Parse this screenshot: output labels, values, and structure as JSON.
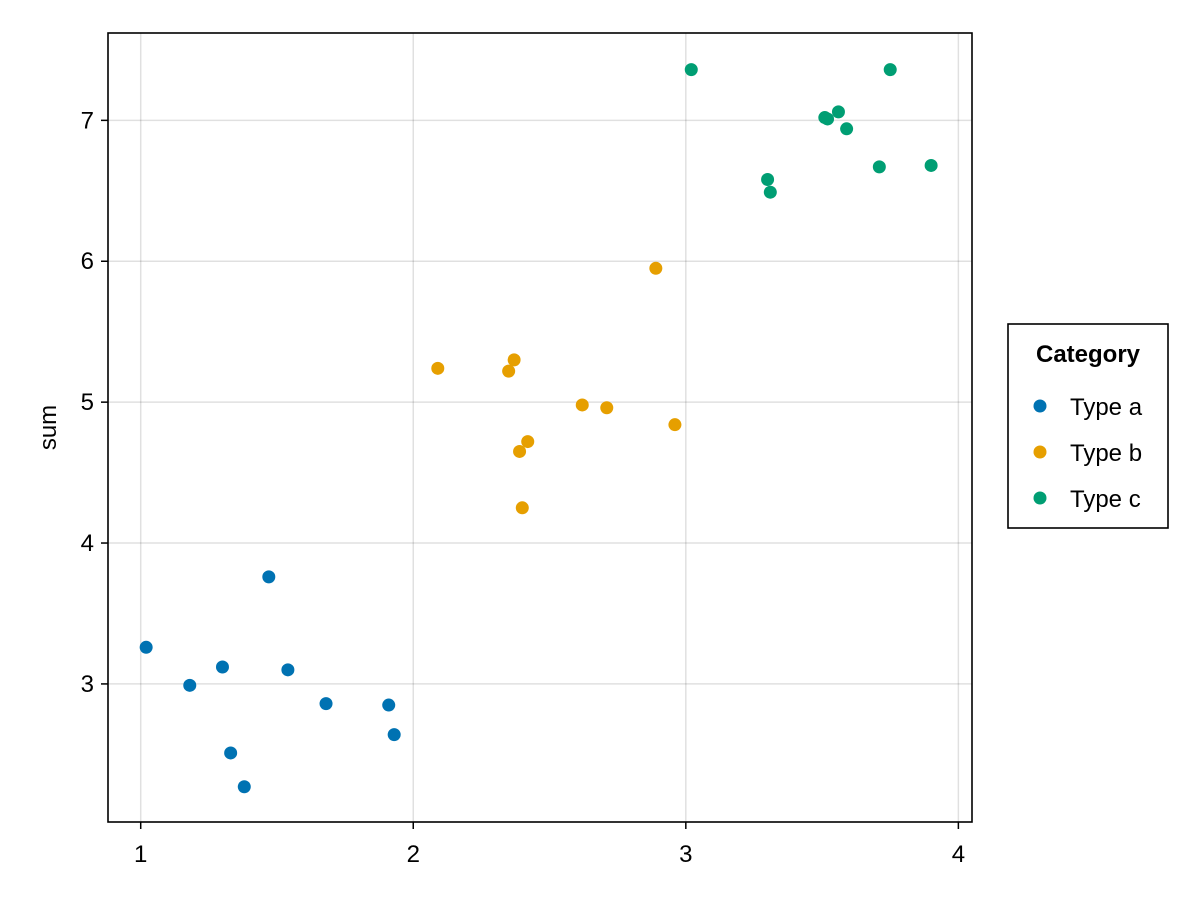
{
  "chart_data": {
    "type": "scatter",
    "title": "",
    "xlabel": "",
    "ylabel": "sum",
    "xlim": [
      0.88,
      4.05
    ],
    "ylim": [
      2.02,
      7.62
    ],
    "xticks": [
      1,
      2,
      3,
      4
    ],
    "yticks": [
      3,
      4,
      5,
      6,
      7
    ],
    "grid": true,
    "legend": {
      "title": "Category",
      "placement": "right"
    },
    "series": [
      {
        "name": "Type a",
        "color": "#0072b2",
        "points": [
          {
            "x": 1.02,
            "y": 3.26
          },
          {
            "x": 1.18,
            "y": 2.99
          },
          {
            "x": 1.3,
            "y": 3.12
          },
          {
            "x": 1.33,
            "y": 2.51
          },
          {
            "x": 1.38,
            "y": 2.27
          },
          {
            "x": 1.47,
            "y": 3.76
          },
          {
            "x": 1.54,
            "y": 3.1
          },
          {
            "x": 1.68,
            "y": 2.86
          },
          {
            "x": 1.91,
            "y": 2.85
          },
          {
            "x": 1.93,
            "y": 2.64
          }
        ]
      },
      {
        "name": "Type b",
        "color": "#e69f00",
        "points": [
          {
            "x": 2.09,
            "y": 5.24
          },
          {
            "x": 2.35,
            "y": 5.22
          },
          {
            "x": 2.37,
            "y": 5.3
          },
          {
            "x": 2.39,
            "y": 4.65
          },
          {
            "x": 2.4,
            "y": 4.25
          },
          {
            "x": 2.42,
            "y": 4.72
          },
          {
            "x": 2.62,
            "y": 4.98
          },
          {
            "x": 2.71,
            "y": 4.96
          },
          {
            "x": 2.89,
            "y": 5.95
          },
          {
            "x": 2.96,
            "y": 4.84
          }
        ]
      },
      {
        "name": "Type c",
        "color": "#009e73",
        "points": [
          {
            "x": 3.02,
            "y": 7.36
          },
          {
            "x": 3.3,
            "y": 6.58
          },
          {
            "x": 3.31,
            "y": 6.49
          },
          {
            "x": 3.51,
            "y": 7.02
          },
          {
            "x": 3.52,
            "y": 7.01
          },
          {
            "x": 3.56,
            "y": 7.06
          },
          {
            "x": 3.59,
            "y": 6.94
          },
          {
            "x": 3.71,
            "y": 6.67
          },
          {
            "x": 3.75,
            "y": 7.36
          },
          {
            "x": 3.9,
            "y": 6.68
          }
        ]
      }
    ]
  }
}
